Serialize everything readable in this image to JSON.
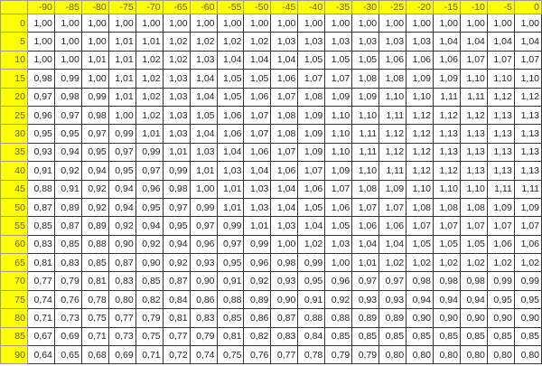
{
  "columns": [
    "-90",
    "-85",
    "-80",
    "-75",
    "-70",
    "-65",
    "-60",
    "-55",
    "-50",
    "-45",
    "-40",
    "-35",
    "-30",
    "-25",
    "-20",
    "-15",
    "-10",
    "-5",
    "0"
  ],
  "rows": [
    {
      "label": "0",
      "values": [
        "1,00",
        "1,00",
        "1,00",
        "1,00",
        "1,00",
        "1,00",
        "1,00",
        "1,00",
        "1,00",
        "1,00",
        "1,00",
        "1,00",
        "1,00",
        "1,00",
        "1,00",
        "1,00",
        "1,00",
        "1,00",
        "1,00"
      ]
    },
    {
      "label": "5",
      "values": [
        "1,00",
        "1,00",
        "1,00",
        "1,01",
        "1,01",
        "1,02",
        "1,02",
        "1,02",
        "1,02",
        "1,03",
        "1,03",
        "1,03",
        "1,03",
        "1,03",
        "1,03",
        "1,04",
        "1,04",
        "1,04",
        "1,04"
      ]
    },
    {
      "label": "10",
      "values": [
        "1,00",
        "1,00",
        "1,01",
        "1,01",
        "1,02",
        "1,02",
        "1,03",
        "1,04",
        "1,04",
        "1,04",
        "1,05",
        "1,05",
        "1,05",
        "1,06",
        "1,06",
        "1,06",
        "1,07",
        "1,07",
        "1,07"
      ]
    },
    {
      "label": "15",
      "values": [
        "0,98",
        "0,99",
        "1,00",
        "1,01",
        "1,02",
        "1,03",
        "1,04",
        "1,05",
        "1,05",
        "1,06",
        "1,07",
        "1,07",
        "1,08",
        "1,08",
        "1,09",
        "1,09",
        "1,10",
        "1,10",
        "1,10"
      ]
    },
    {
      "label": "20",
      "values": [
        "0,97",
        "0,98",
        "0,99",
        "1,01",
        "1,02",
        "1,03",
        "1,04",
        "1,05",
        "1,06",
        "1,07",
        "1,08",
        "1,09",
        "1,09",
        "1,10",
        "1,10",
        "1,11",
        "1,11",
        "1,12",
        "1,12"
      ]
    },
    {
      "label": "25",
      "values": [
        "0,96",
        "0,97",
        "0,98",
        "1,00",
        "1,02",
        "1,03",
        "1,05",
        "1,06",
        "1,07",
        "1,08",
        "1,09",
        "1,10",
        "1,10",
        "1,11",
        "1,12",
        "1,12",
        "1,12",
        "1,13",
        "1,13"
      ]
    },
    {
      "label": "30",
      "values": [
        "0,95",
        "0,95",
        "0,97",
        "0,99",
        "1,01",
        "1,03",
        "1,04",
        "1,06",
        "1,07",
        "1,08",
        "1,09",
        "1,10",
        "1,11",
        "1,12",
        "1,12",
        "1,13",
        "1,13",
        "1,13",
        "1,13"
      ]
    },
    {
      "label": "35",
      "values": [
        "0,93",
        "0,94",
        "0,95",
        "0,97",
        "0,99",
        "1,01",
        "1,03",
        "1,04",
        "1,06",
        "1,07",
        "1,09",
        "1,10",
        "1,11",
        "1,12",
        "1,12",
        "1,13",
        "1,13",
        "1,13",
        "1,13"
      ]
    },
    {
      "label": "40",
      "values": [
        "0,91",
        "0,92",
        "0,94",
        "0,95",
        "0,97",
        "0,99",
        "1,01",
        "1,03",
        "1,04",
        "1,06",
        "1,07",
        "1,09",
        "1,10",
        "1,11",
        "1,12",
        "1,12",
        "1,13",
        "1,13",
        "1,13"
      ]
    },
    {
      "label": "45",
      "values": [
        "0,88",
        "0,91",
        "0,92",
        "0,94",
        "0,96",
        "0,98",
        "1,00",
        "1,01",
        "1,03",
        "1,04",
        "1,06",
        "1,07",
        "1,08",
        "1,09",
        "1,10",
        "1,10",
        "1,10",
        "1,11",
        "1,11"
      ]
    },
    {
      "label": "50",
      "values": [
        "0,87",
        "0,89",
        "0,92",
        "0,94",
        "0,95",
        "0,97",
        "0,99",
        "1,01",
        "1,03",
        "1,04",
        "1,05",
        "1,06",
        "1,07",
        "1,07",
        "1,08",
        "1,08",
        "1,08",
        "1,09",
        "1,09"
      ]
    },
    {
      "label": "55",
      "values": [
        "0,85",
        "0,87",
        "0,89",
        "0,92",
        "0,94",
        "0,95",
        "0,97",
        "0,99",
        "1,01",
        "1,03",
        "1,04",
        "1,05",
        "1,06",
        "1,06",
        "1,07",
        "1,07",
        "1,07",
        "1,07",
        "1,07"
      ]
    },
    {
      "label": "60",
      "values": [
        "0,83",
        "0,85",
        "0,88",
        "0,90",
        "0,92",
        "0,94",
        "0,96",
        "0,97",
        "0,99",
        "1,00",
        "1,02",
        "1,03",
        "1,04",
        "1,04",
        "1,05",
        "1,05",
        "1,05",
        "1,06",
        "1,06"
      ]
    },
    {
      "label": "65",
      "values": [
        "0,81",
        "0,83",
        "0,85",
        "0,87",
        "0,90",
        "0,92",
        "0,93",
        "0,95",
        "0,96",
        "0,98",
        "0,99",
        "1,00",
        "1,01",
        "1,02",
        "1,02",
        "1,02",
        "1,02",
        "1,02",
        "1,02"
      ]
    },
    {
      "label": "70",
      "values": [
        "0,77",
        "0,79",
        "0,81",
        "0,83",
        "0,85",
        "0,87",
        "0,90",
        "0,91",
        "0,92",
        "0,93",
        "0,95",
        "0,96",
        "0,97",
        "0,97",
        "0,98",
        "0,98",
        "0,98",
        "0,99",
        "0,99"
      ]
    },
    {
      "label": "75",
      "values": [
        "0,74",
        "0,76",
        "0,78",
        "0,80",
        "0,82",
        "0,84",
        "0,86",
        "0,88",
        "0,89",
        "0,90",
        "0,91",
        "0,92",
        "0,93",
        "0,93",
        "0,94",
        "0,94",
        "0,94",
        "0,95",
        "0,95"
      ]
    },
    {
      "label": "80",
      "values": [
        "0,71",
        "0,73",
        "0,75",
        "0,77",
        "0,79",
        "0,81",
        "0,83",
        "0,85",
        "0,86",
        "0,87",
        "0,88",
        "0,88",
        "0,89",
        "0,89",
        "0,90",
        "0,90",
        "0,90",
        "0,90",
        "0,90"
      ]
    },
    {
      "label": "85",
      "values": [
        "0,67",
        "0,69",
        "0,71",
        "0,73",
        "0,75",
        "0,77",
        "0,79",
        "0,81",
        "0,82",
        "0,83",
        "0,84",
        "0,85",
        "0,85",
        "0,85",
        "0,85",
        "0,85",
        "0,85",
        "0,85",
        "0,85"
      ]
    },
    {
      "label": "90",
      "values": [
        "0,64",
        "0,65",
        "0,68",
        "0,69",
        "0,71",
        "0,72",
        "0,74",
        "0,75",
        "0,76",
        "0,77",
        "0,78",
        "0,79",
        "0,79",
        "0,80",
        "0,80",
        "0,80",
        "0,80",
        "0,80",
        "0,80"
      ]
    }
  ],
  "colors": {
    "header_bg": "#ffff00",
    "header_text": "#6b5a00"
  }
}
